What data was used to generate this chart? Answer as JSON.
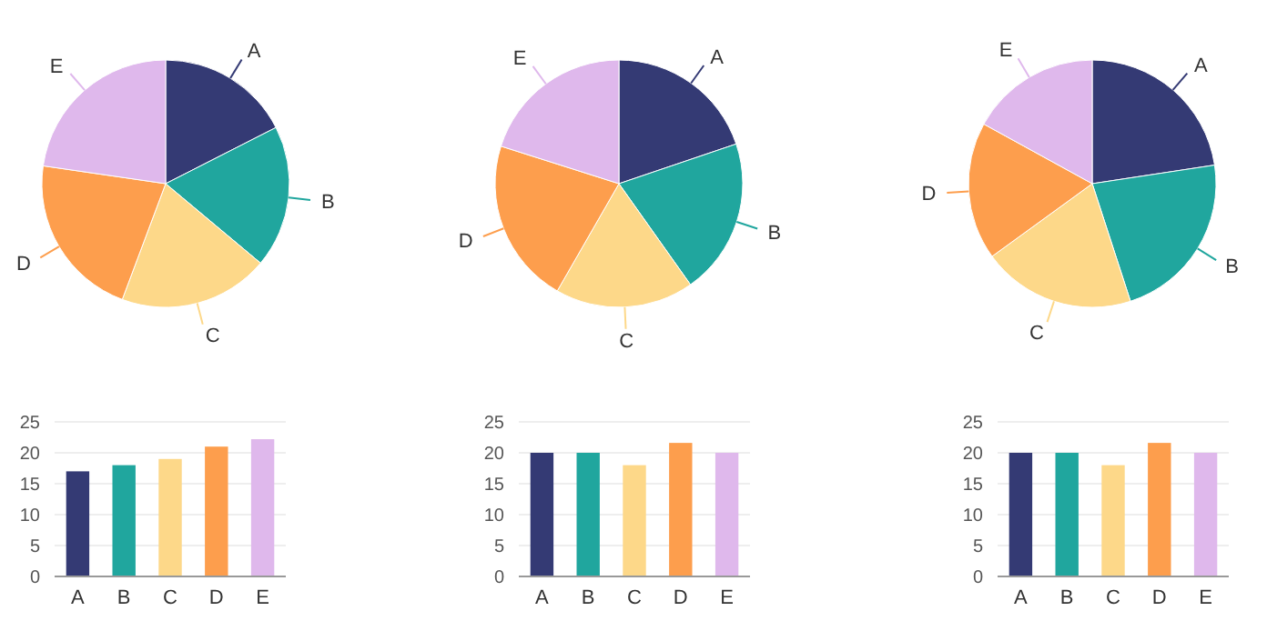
{
  "chart_data": [
    {
      "type": "pie",
      "categories": [
        "A",
        "B",
        "C",
        "D",
        "E"
      ],
      "values": [
        17.5,
        18.6,
        19.6,
        21.6,
        22.7
      ],
      "colors": [
        "#343a74",
        "#20a69e",
        "#fdd889",
        "#fd9e4d",
        "#dfb8ec"
      ]
    },
    {
      "type": "pie",
      "categories": [
        "A",
        "B",
        "C",
        "D",
        "E"
      ],
      "values": [
        19.8,
        20.4,
        18.1,
        21.6,
        20.1
      ],
      "colors": [
        "#343a74",
        "#20a69e",
        "#fdd889",
        "#fd9e4d",
        "#dfb8ec"
      ]
    },
    {
      "type": "pie",
      "categories": [
        "A",
        "B",
        "C",
        "D",
        "E"
      ],
      "values": [
        22.6,
        22.4,
        20,
        18,
        17
      ],
      "colors": [
        "#343a74",
        "#20a69e",
        "#fdd889",
        "#fd9e4d",
        "#dfb8ec"
      ]
    },
    {
      "type": "bar",
      "categories": [
        "A",
        "B",
        "C",
        "D",
        "E"
      ],
      "values": [
        17,
        18,
        19,
        21,
        22.2
      ],
      "colors": [
        "#343a74",
        "#20a69e",
        "#fdd889",
        "#fd9e4d",
        "#dfb8ec"
      ],
      "ylim": [
        0,
        25
      ],
      "yticks": [
        0,
        5,
        10,
        15,
        20,
        25
      ],
      "grid": "y"
    },
    {
      "type": "bar",
      "categories": [
        "A",
        "B",
        "C",
        "D",
        "E"
      ],
      "values": [
        20,
        20,
        18,
        21.6,
        20
      ],
      "colors": [
        "#343a74",
        "#20a69e",
        "#fdd889",
        "#fd9e4d",
        "#dfb8ec"
      ],
      "ylim": [
        0,
        25
      ],
      "yticks": [
        0,
        5,
        10,
        15,
        20,
        25
      ],
      "grid": "y"
    },
    {
      "type": "bar",
      "categories": [
        "A",
        "B",
        "C",
        "D",
        "E"
      ],
      "values": [
        20,
        20,
        18,
        21.6,
        20
      ],
      "colors": [
        "#343a74",
        "#20a69e",
        "#fdd889",
        "#fd9e4d",
        "#dfb8ec"
      ],
      "ylim": [
        0,
        25
      ],
      "yticks": [
        0,
        5,
        10,
        15,
        20,
        25
      ],
      "grid": "y"
    }
  ]
}
